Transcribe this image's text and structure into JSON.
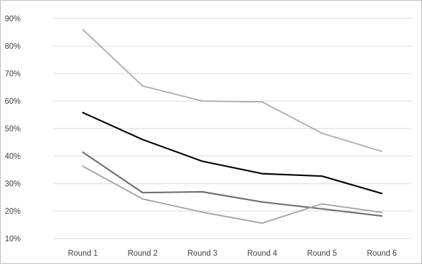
{
  "chart_data": {
    "type": "line",
    "categories": [
      "Round 1",
      "Round 2",
      "Round 3",
      "Round 4",
      "Round 5",
      "Round 6"
    ],
    "y_ticks": [
      "10%",
      "20%",
      "30%",
      "40%",
      "50%",
      "60%",
      "70%",
      "80%",
      "90%"
    ],
    "ylim": [
      10,
      90
    ],
    "grid": true,
    "legend": "none",
    "series": [
      {
        "values": [
          86,
          65.5,
          60,
          59.7,
          48.3,
          41.7
        ],
        "color": "#b0b0b0",
        "stroke_width": 2
      },
      {
        "values": [
          55.8,
          46,
          38.1,
          33.6,
          32.7,
          26.4
        ],
        "color": "#000000",
        "stroke_width": 2.2
      },
      {
        "values": [
          41.4,
          26.7,
          27,
          23.3,
          20.8,
          18.2
        ],
        "color": "#6e6e6e",
        "stroke_width": 2.2
      },
      {
        "values": [
          36.3,
          24.4,
          19.6,
          15.6,
          22.6,
          19.5
        ],
        "color": "#a6a6a6",
        "stroke_width": 2
      }
    ]
  }
}
